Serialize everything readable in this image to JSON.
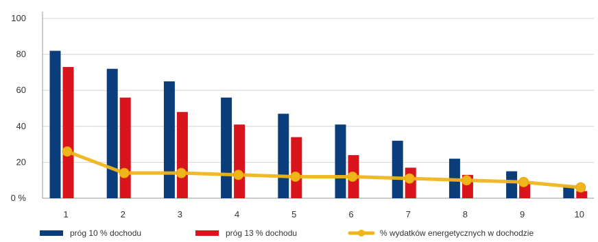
{
  "chart_data": {
    "type": "bar",
    "categories": [
      "1",
      "2",
      "3",
      "4",
      "5",
      "6",
      "7",
      "8",
      "9",
      "10"
    ],
    "y_tick_labels": [
      "0 %",
      "20",
      "40",
      "60",
      "80",
      "100"
    ],
    "y_tick_values": [
      0,
      20,
      40,
      60,
      80,
      100
    ],
    "ylim": [
      0,
      100
    ],
    "grid": true,
    "legend_position": "bottom",
    "series": [
      {
        "name": "próg 10 % dochodu",
        "kind": "bar",
        "color": "#0a3d7a",
        "values": [
          82,
          72,
          65,
          56,
          47,
          41,
          32,
          22,
          15,
          7
        ]
      },
      {
        "name": "próg 13 % dochodu",
        "kind": "bar",
        "color": "#d8141c",
        "values": [
          73,
          56,
          48,
          41,
          34,
          24,
          17,
          13,
          8,
          4
        ]
      },
      {
        "name": "% wydatków energetycznych w dochodzie",
        "kind": "line",
        "color": "#f0b41c",
        "values": [
          26,
          14,
          14,
          13,
          12,
          12,
          11,
          10,
          9,
          6
        ]
      }
    ]
  }
}
